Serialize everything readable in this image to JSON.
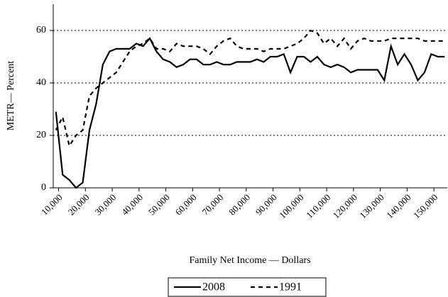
{
  "chart_data": {
    "type": "line",
    "x_label": "Family Net Income — Dollars",
    "y_label": "METR— Percent",
    "x": [
      9000,
      11500,
      14000,
      16500,
      19000,
      21500,
      24000,
      26500,
      29000,
      31500,
      34000,
      36500,
      39000,
      41500,
      44000,
      46500,
      49000,
      51500,
      54000,
      56500,
      59000,
      61500,
      64000,
      66500,
      69000,
      71500,
      74000,
      76500,
      79000,
      81500,
      84000,
      86500,
      89000,
      91500,
      94000,
      96500,
      99000,
      101500,
      104000,
      106500,
      109000,
      111500,
      114000,
      116500,
      119000,
      121500,
      124000,
      126500,
      129000,
      131500,
      134000,
      136500,
      139000,
      141500,
      144000,
      146500,
      149000,
      151500,
      154000
    ],
    "series": [
      {
        "name": "2008",
        "color": "#000000",
        "style": "solid",
        "values": [
          29,
          5,
          3,
          0,
          2,
          22,
          32,
          47,
          52,
          53,
          53,
          53,
          55,
          54,
          57,
          52,
          49,
          48,
          46,
          47,
          49,
          49,
          47,
          47,
          48,
          47,
          47,
          48,
          48,
          48,
          49,
          48,
          50,
          50,
          51,
          44,
          50,
          50,
          48,
          50,
          47,
          46,
          47,
          46,
          44,
          45,
          45,
          45,
          45,
          41,
          54,
          47,
          51,
          47,
          41,
          44,
          51,
          50,
          50
        ]
      },
      {
        "name": "1991",
        "color": "#000000",
        "style": "dashed",
        "values": [
          22,
          27,
          16,
          20,
          22,
          35,
          38,
          40,
          42,
          44,
          48,
          52,
          54,
          55,
          57,
          53,
          53,
          52,
          55,
          54,
          54,
          54,
          53,
          51,
          54,
          56,
          57,
          54,
          53,
          53,
          53,
          52,
          53,
          53,
          53,
          54,
          55,
          57,
          60,
          59,
          55,
          57,
          54,
          57,
          53,
          56,
          57,
          56,
          56,
          56,
          57,
          57,
          57,
          57,
          57,
          56,
          56,
          56,
          56
        ]
      }
    ],
    "xlim": [
      8000,
      155000
    ],
    "xticks": [
      {
        "value": 10000,
        "label": "10,000"
      },
      {
        "value": 20000,
        "label": "20,000"
      },
      {
        "value": 30000,
        "label": "30,000"
      },
      {
        "value": 40000,
        "label": "40,000"
      },
      {
        "value": 50000,
        "label": "50,000"
      },
      {
        "value": 60000,
        "label": "60,000"
      },
      {
        "value": 70000,
        "label": "70,000"
      },
      {
        "value": 80000,
        "label": "80,000"
      },
      {
        "value": 90000,
        "label": "90,000"
      },
      {
        "value": 100000,
        "label": "100,000"
      },
      {
        "value": 110000,
        "label": "110,000"
      },
      {
        "value": 120000,
        "label": "120,000"
      },
      {
        "value": 130000,
        "label": "130,000"
      },
      {
        "value": 140000,
        "label": "140,000"
      },
      {
        "value": 150000,
        "label": "150,000"
      }
    ],
    "ylim": [
      0,
      70
    ],
    "yticks": [
      0,
      20,
      40,
      60
    ],
    "grid": true,
    "legend": "bottom"
  }
}
